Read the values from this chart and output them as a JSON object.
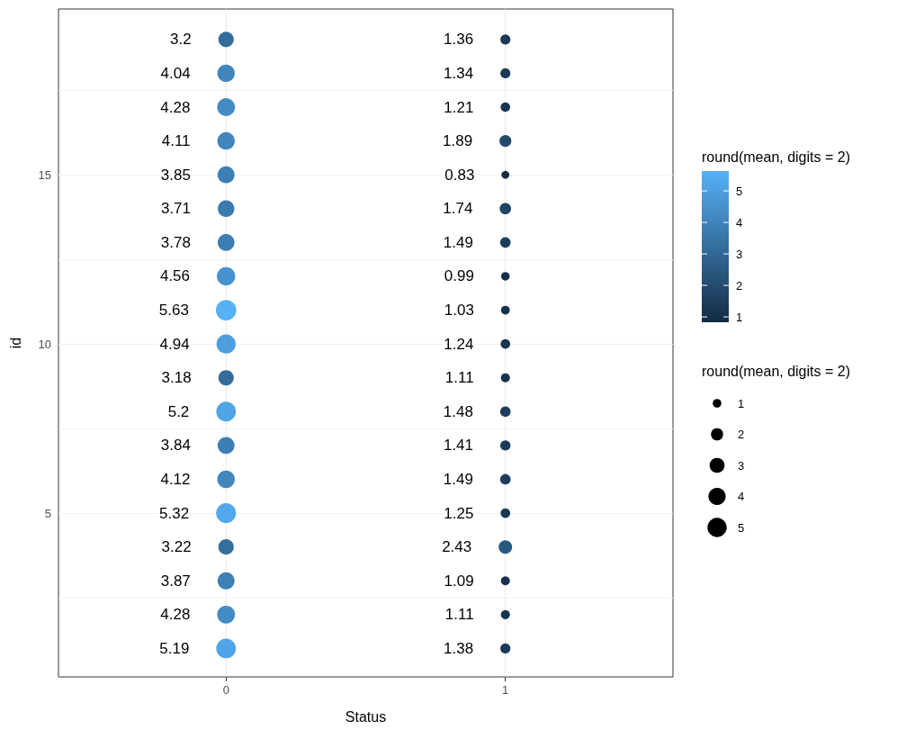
{
  "chart_data": {
    "type": "bubble",
    "xlabel": "Status",
    "ylabel": "id",
    "clabel": "round(mean, digits = 2)",
    "legend_title": "round(mean, digits = 2)",
    "categories": [
      "0",
      "1"
    ],
    "series": [
      {
        "x": [
          "0",
          "0",
          "0",
          "0",
          "0",
          "0",
          "0",
          "0",
          "0",
          "0",
          "0",
          "0",
          "0",
          "0",
          "0",
          "0",
          "0",
          "0",
          "0"
        ],
        "values": [
          19,
          18,
          17,
          16,
          15,
          14,
          13,
          12,
          11,
          10,
          9,
          8,
          7,
          6,
          5,
          4,
          3,
          2,
          1
        ],
        "sizes": [
          3.2,
          4.04,
          4.28,
          4.11,
          3.85,
          3.71,
          3.78,
          4.56,
          5.63,
          4.94,
          3.18,
          5.2,
          3.84,
          4.12,
          5.32,
          3.22,
          3.87,
          4.28,
          5.19
        ],
        "colors": [
          "#346d9c",
          "#4085bb",
          "#438bc4",
          "#4187be",
          "#3d7fb4",
          "#3b7baf",
          "#3c7db2",
          "#4793cf",
          "#56b1f7",
          "#4c9edd",
          "#346d9b",
          "#50a5e7",
          "#3d7fb4",
          "#4187be",
          "#52a8eb",
          "#346e9d",
          "#3d80b5",
          "#438bc4",
          "#50a5e6"
        ],
        "value_labels": [
          "3.2",
          "4.04",
          "4.28",
          "4.11",
          "3.85",
          "3.71",
          "3.78",
          "4.56",
          "5.63",
          "4.94",
          "3.18",
          "5.2",
          "3.84",
          "4.12",
          "5.32",
          "3.22",
          "3.87",
          "4.28",
          "5.19"
        ]
      },
      {
        "x": [
          "1",
          "1",
          "1",
          "1",
          "1",
          "1",
          "1",
          "1",
          "1",
          "1",
          "1",
          "1",
          "1",
          "1",
          "1",
          "1",
          "1",
          "1",
          "1"
        ],
        "values": [
          19,
          18,
          17,
          16,
          15,
          14,
          13,
          12,
          11,
          10,
          9,
          8,
          7,
          6,
          5,
          4,
          3,
          2,
          1
        ],
        "sizes": [
          1.36,
          1.34,
          1.21,
          1.89,
          0.83,
          1.74,
          1.49,
          0.99,
          1.03,
          1.24,
          1.11,
          1.48,
          1.41,
          1.49,
          1.25,
          2.43,
          1.09,
          1.11,
          1.38
        ],
        "colors": [
          "#1a3a57",
          "#1a3956",
          "#183651",
          "#22496b",
          "#132b43",
          "#204465",
          "#1c3d5c",
          "#153049",
          "#16314b",
          "#193652",
          "#17334e",
          "#1c3d5b",
          "#1b3b59",
          "#1c3d5c",
          "#193753",
          "#29587f",
          "#17324d",
          "#17334e",
          "#1b3a58"
        ],
        "value_labels": [
          "1.36",
          "1.34",
          "1.21",
          "1.89",
          "0.83",
          "1.74",
          "1.49",
          "0.99",
          "1.03",
          "1.24",
          "1.11",
          "1.48",
          "1.41",
          "1.49",
          "1.25",
          "2.43",
          "1.09",
          "1.11",
          "1.38"
        ]
      }
    ],
    "ylim": [
      0.16,
      19.9
    ],
    "yticks": [
      {
        "value": 2.5,
        "label": null
      },
      5,
      {
        "value": 7.5,
        "label": null
      },
      10,
      {
        "value": 12.5,
        "label": null
      },
      15,
      {
        "value": 17.5,
        "label": null
      }
    ],
    "grid": true,
    "colors": [
      "#132b43",
      "#56b1f7"
    ],
    "clim": [
      0.83,
      5.63
    ],
    "cticks": [
      1,
      2,
      3,
      4,
      5
    ],
    "size_legend": [
      1,
      2,
      3,
      4,
      5
    ]
  }
}
